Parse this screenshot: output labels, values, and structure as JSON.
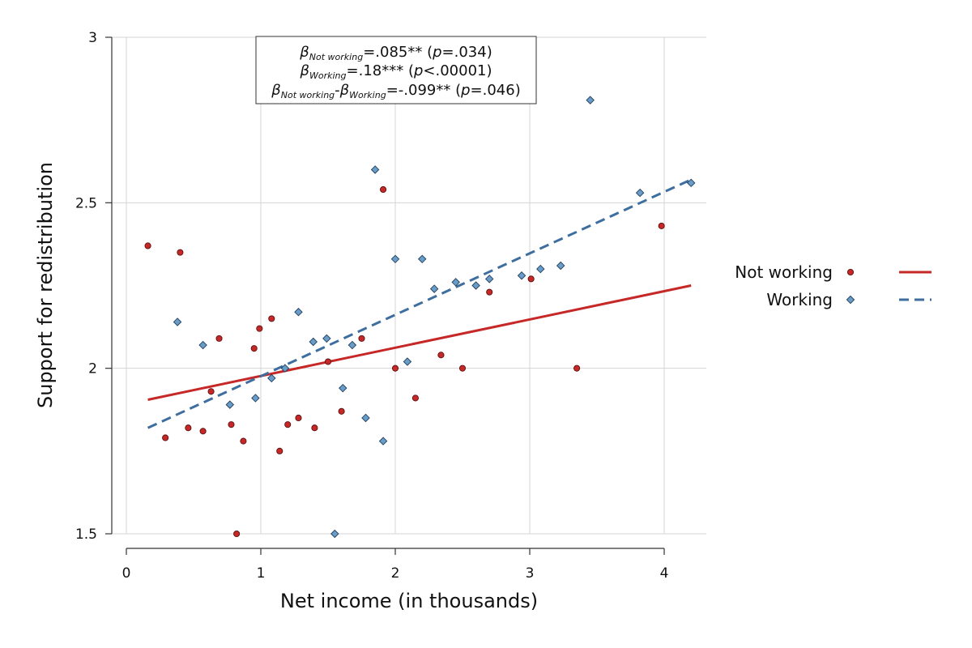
{
  "chart_data": {
    "type": "scatter",
    "xlabel": "Net income (in thousands)",
    "ylabel": "Support for redistribution",
    "xlim": [
      0,
      4.3
    ],
    "ylim": [
      1.5,
      3.0
    ],
    "xticks": [
      0,
      1,
      2,
      3,
      4
    ],
    "yticks": [
      1.5,
      2,
      2.5,
      3
    ],
    "xtick_labels": [
      "0",
      "1",
      "2",
      "3",
      "4"
    ],
    "ytick_labels": [
      "1.5",
      "2",
      "2.5",
      "3"
    ],
    "grid": true,
    "legend_position": "right",
    "series": [
      {
        "name": "Not working",
        "marker": "circle",
        "color": "#c62828",
        "points": [
          [
            0.16,
            2.37
          ],
          [
            0.29,
            1.79
          ],
          [
            0.4,
            2.35
          ],
          [
            0.46,
            1.82
          ],
          [
            0.57,
            1.81
          ],
          [
            0.63,
            1.93
          ],
          [
            0.69,
            2.09
          ],
          [
            0.78,
            1.83
          ],
          [
            0.82,
            1.5
          ],
          [
            0.87,
            1.78
          ],
          [
            0.95,
            2.06
          ],
          [
            0.99,
            2.12
          ],
          [
            1.08,
            2.15
          ],
          [
            1.14,
            1.75
          ],
          [
            1.2,
            1.83
          ],
          [
            1.28,
            1.85
          ],
          [
            1.4,
            1.82
          ],
          [
            1.5,
            2.02
          ],
          [
            1.6,
            1.87
          ],
          [
            1.75,
            2.09
          ],
          [
            1.91,
            2.54
          ],
          [
            2.0,
            2.0
          ],
          [
            2.15,
            1.91
          ],
          [
            2.34,
            2.04
          ],
          [
            2.5,
            2.0
          ],
          [
            2.7,
            2.23
          ],
          [
            3.01,
            2.27
          ],
          [
            3.35,
            2.0
          ],
          [
            3.98,
            2.43
          ]
        ],
        "fit": {
          "x1": 0.16,
          "y1": 1.905,
          "x2": 4.2,
          "y2": 2.25,
          "style": "solid"
        }
      },
      {
        "name": "Working",
        "marker": "diamond",
        "color": "#3d6e9e",
        "points": [
          [
            0.38,
            2.14
          ],
          [
            0.57,
            2.07
          ],
          [
            0.77,
            1.89
          ],
          [
            0.96,
            1.91
          ],
          [
            1.08,
            1.97
          ],
          [
            1.18,
            2.0
          ],
          [
            1.28,
            2.17
          ],
          [
            1.39,
            2.08
          ],
          [
            1.49,
            2.09
          ],
          [
            1.55,
            1.5
          ],
          [
            1.61,
            1.94
          ],
          [
            1.68,
            2.07
          ],
          [
            1.78,
            1.85
          ],
          [
            1.85,
            2.6
          ],
          [
            1.91,
            1.78
          ],
          [
            2.0,
            2.33
          ],
          [
            2.09,
            2.02
          ],
          [
            2.2,
            2.33
          ],
          [
            2.29,
            2.24
          ],
          [
            2.45,
            2.26
          ],
          [
            2.6,
            2.25
          ],
          [
            2.7,
            2.27
          ],
          [
            2.94,
            2.28
          ],
          [
            3.08,
            2.3
          ],
          [
            3.23,
            2.31
          ],
          [
            3.45,
            2.81
          ],
          [
            3.82,
            2.53
          ],
          [
            4.2,
            2.56
          ]
        ],
        "fit": {
          "x1": 0.16,
          "y1": 1.82,
          "x2": 4.2,
          "y2": 2.57,
          "style": "dashed"
        }
      }
    ],
    "annotation": {
      "lines": [
        {
          "beta": "β",
          "sub": "Not working",
          "text": "=.085** (",
          "p": "p",
          "rest": "=.034)"
        },
        {
          "beta": "β",
          "sub": "Working",
          "text": "=.18*** (",
          "p": "p",
          "rest": "<.00001)"
        },
        {
          "beta": "β",
          "sub": "Not working",
          "mid": "-",
          "beta2": "β",
          "sub2": "Working",
          "text": "=-.099** (",
          "p": "p",
          "rest": "=.046)"
        }
      ]
    },
    "legend": [
      {
        "label": "Not working",
        "marker": "circle",
        "color": "#c62828",
        "line": "solid"
      },
      {
        "label": "Working",
        "marker": "diamond",
        "color": "#3d6e9e",
        "line": "dashed"
      }
    ]
  }
}
